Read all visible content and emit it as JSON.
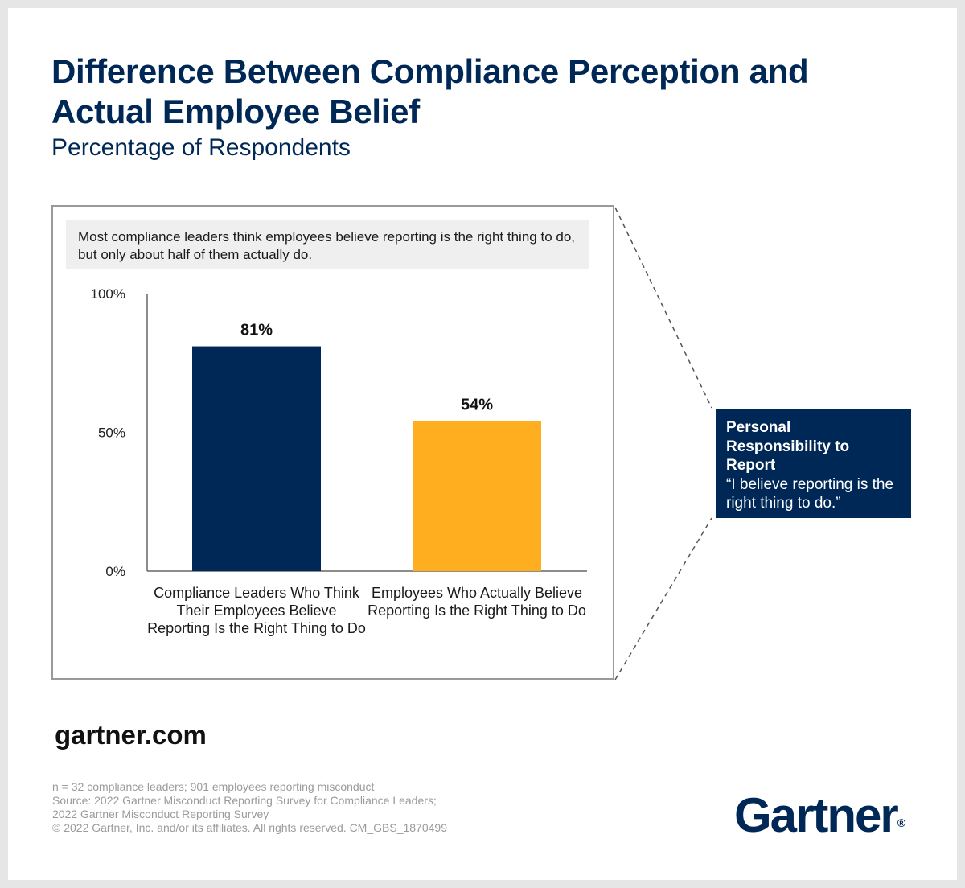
{
  "title": "Difference Between Compliance Perception and Actual Employee Belief",
  "subtitle": "Percentage of Respondents",
  "note": "Most compliance leaders think employees believe reporting is the right thing to do, but only about half of them actually do.",
  "callout": {
    "heading": "Personal Responsibility to Report",
    "quote": "“I believe  reporting is the right thing to do.”"
  },
  "site": "gartner.com",
  "footnotes": [
    "n = 32 compliance leaders; 901 employees reporting misconduct",
    "Source: 2022 Gartner Misconduct Reporting Survey for Compliance Leaders;",
    "2022 Gartner Misconduct Reporting Survey",
    "© 2022 Gartner, Inc. and/or its affiliates. All rights reserved. CM_GBS_1870499"
  ],
  "logo": {
    "text": "Gartner",
    "mark": "®"
  },
  "colors": {
    "navy": "#002856",
    "gold": "#FFAE1F"
  },
  "chart_data": {
    "type": "bar",
    "categories": [
      "Compliance Leaders Who Think Their Employees Believe Reporting Is the Right Thing to Do",
      "Employees Who Actually Believe Reporting Is the Right Thing to Do"
    ],
    "values": [
      81,
      54
    ],
    "value_labels": [
      "81%",
      "54%"
    ],
    "bar_colors": [
      "#002856",
      "#FFAE1F"
    ],
    "ylim": [
      0,
      100
    ],
    "yticks": [
      0,
      50,
      100
    ],
    "ytick_labels": [
      "0%",
      "50%",
      "100%"
    ],
    "grid": false,
    "legend": "none"
  }
}
